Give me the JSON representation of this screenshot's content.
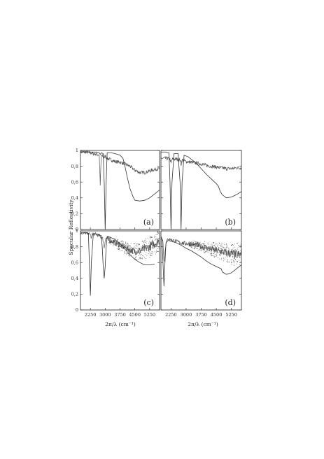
{
  "figure": {
    "ylabel": "Specular Reflectivity",
    "xlabel": "2π/λ (cm⁻¹)"
  },
  "chart_data": [
    {
      "type": "line",
      "panel_label": "(a)",
      "xlim": [
        1750,
        5750
      ],
      "ylim": [
        0,
        1
      ],
      "yticks": [
        "0",
        "0,2",
        "0,4",
        "0,6",
        "0,8",
        "1"
      ],
      "series": [
        {
          "style": "noisy",
          "x": [
            1750,
            2000,
            2250,
            2400,
            2600,
            2700,
            2750,
            2800,
            2900,
            2950,
            3000,
            3050,
            3100,
            3300,
            3500,
            3750,
            4000,
            4250,
            4500,
            4750,
            5000,
            5250,
            5500,
            5750
          ],
          "y": [
            0.98,
            0.98,
            0.97,
            0.96,
            0.95,
            0.94,
            0.56,
            0.94,
            0.92,
            0.91,
            0.93,
            0.91,
            0.9,
            0.88,
            0.86,
            0.85,
            0.83,
            0.8,
            0.75,
            0.72,
            0.72,
            0.74,
            0.76,
            0.77
          ]
        },
        {
          "style": "smooth",
          "x": [
            1750,
            2000,
            2250,
            2600,
            2700,
            2750,
            2800,
            2900,
            2950,
            3000,
            3050,
            3100,
            3300,
            3500,
            3750,
            3900,
            4000,
            4100,
            4250,
            4400,
            4500,
            4750,
            5000,
            5250,
            5500,
            5750
          ],
          "y": [
            0.98,
            0.98,
            0.98,
            0.98,
            0.97,
            0.95,
            0.97,
            0.96,
            0.6,
            0.0,
            0.6,
            0.97,
            0.97,
            0.96,
            0.94,
            0.9,
            0.8,
            0.68,
            0.52,
            0.42,
            0.37,
            0.36,
            0.37,
            0.4,
            0.45,
            0.5
          ]
        }
      ]
    },
    {
      "type": "line",
      "panel_label": "(b)",
      "xlim": [
        1750,
        5750
      ],
      "ylim": [
        0,
        1
      ],
      "series": [
        {
          "style": "noisy",
          "x": [
            1750,
            2000,
            2200,
            2250,
            2300,
            2500,
            2700,
            2750,
            2800,
            3000,
            3250,
            3500,
            3750,
            4000,
            4250,
            4500,
            4750,
            5000,
            5250,
            5500,
            5750
          ],
          "y": [
            0.9,
            0.9,
            0.89,
            0.83,
            0.89,
            0.89,
            0.88,
            0.82,
            0.88,
            0.86,
            0.85,
            0.84,
            0.83,
            0.81,
            0.8,
            0.79,
            0.78,
            0.77,
            0.77,
            0.78,
            0.78
          ]
        },
        {
          "style": "smooth",
          "x": [
            1750,
            2000,
            2150,
            2200,
            2250,
            2300,
            2400,
            2600,
            2700,
            2750,
            2800,
            2900,
            3100,
            3300,
            3500,
            3750,
            4000,
            4250,
            4500,
            4600,
            4700,
            4800,
            5000,
            5250,
            5500,
            5750
          ],
          "y": [
            0.98,
            0.98,
            0.97,
            0.6,
            0.0,
            0.6,
            0.96,
            0.96,
            0.6,
            0.0,
            0.6,
            0.94,
            0.92,
            0.88,
            0.84,
            0.77,
            0.7,
            0.64,
            0.58,
            0.55,
            0.48,
            0.44,
            0.4,
            0.41,
            0.44,
            0.48
          ]
        }
      ]
    },
    {
      "type": "line",
      "panel_label": "(c)",
      "xlim": [
        1750,
        5750
      ],
      "ylim": [
        0,
        1
      ],
      "yticks": [
        "0",
        "0,2",
        "0,4",
        "0,6",
        "0,8",
        "1"
      ],
      "xticks": [
        2250,
        3000,
        3750,
        4500,
        5250
      ],
      "series": [
        {
          "style": "noisy",
          "x": [
            1750,
            2000,
            2250,
            2300,
            2350,
            2500,
            2750,
            2850,
            2900,
            2950,
            3000,
            3050,
            3100,
            3250,
            3500,
            3750,
            4000,
            4250,
            4500,
            4750,
            5000,
            5250,
            5500,
            5750
          ],
          "y": [
            0.97,
            0.97,
            0.96,
            0.9,
            0.96,
            0.96,
            0.93,
            0.91,
            0.88,
            0.79,
            0.88,
            0.91,
            0.9,
            0.88,
            0.85,
            0.82,
            0.79,
            0.76,
            0.74,
            0.75,
            0.77,
            0.8,
            0.84,
            0.88
          ]
        },
        {
          "style": "smooth",
          "x": [
            1750,
            2000,
            2150,
            2200,
            2250,
            2300,
            2400,
            2600,
            2800,
            2850,
            2900,
            2950,
            3000,
            3050,
            3100,
            3250,
            3500,
            3750,
            4000,
            4250,
            4500,
            4750,
            5000,
            5250,
            5500
          ],
          "y": [
            0.98,
            0.98,
            0.97,
            0.6,
            0.18,
            0.6,
            0.96,
            0.96,
            0.94,
            0.8,
            0.55,
            0.4,
            0.55,
            0.8,
            0.93,
            0.92,
            0.89,
            0.84,
            0.77,
            0.7,
            0.64,
            0.6,
            0.57,
            0.57,
            0.58
          ]
        }
      ]
    },
    {
      "type": "line",
      "panel_label": "(d)",
      "xlim": [
        1750,
        5750
      ],
      "ylim": [
        0,
        1
      ],
      "xticks": [
        2250,
        3000,
        3750,
        4500,
        5250
      ],
      "series": [
        {
          "style": "noisy",
          "x": [
            1750,
            1850,
            1900,
            2000,
            2100,
            2250,
            2500,
            2750,
            3000,
            3250,
            3500,
            3750,
            4000,
            4250,
            4500,
            4750,
            5000,
            5250,
            5500,
            5750
          ],
          "y": [
            0.9,
            0.88,
            0.6,
            0.85,
            0.9,
            0.89,
            0.87,
            0.85,
            0.84,
            0.83,
            0.82,
            0.8,
            0.79,
            0.77,
            0.75,
            0.74,
            0.72,
            0.71,
            0.7,
            0.7
          ]
        },
        {
          "style": "smooth",
          "x": [
            1750,
            1800,
            1850,
            1900,
            1950,
            2000,
            2100,
            2250,
            2500,
            2750,
            3000,
            3250,
            3500,
            3750,
            4000,
            4250,
            4500,
            4750,
            4800,
            5000,
            5250,
            5500,
            5750
          ],
          "y": [
            0.93,
            0.9,
            0.6,
            0.3,
            0.6,
            0.85,
            0.88,
            0.87,
            0.85,
            0.82,
            0.78,
            0.75,
            0.71,
            0.67,
            0.62,
            0.58,
            0.55,
            0.52,
            0.48,
            0.45,
            0.47,
            0.52,
            0.57
          ]
        }
      ]
    }
  ]
}
